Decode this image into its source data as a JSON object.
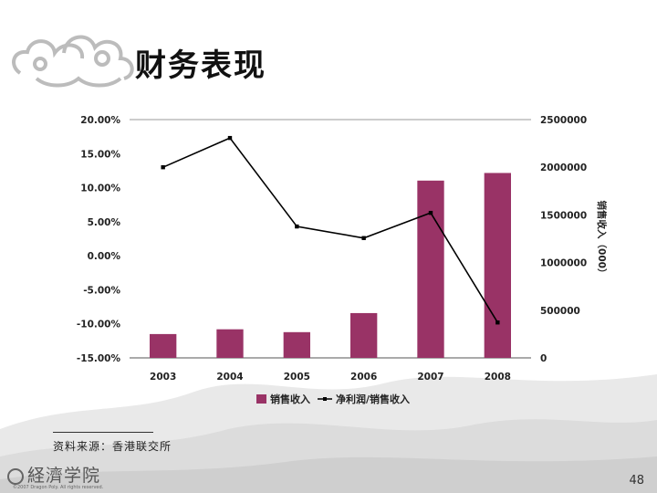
{
  "title": "财务表现",
  "source": "资料来源：香港联交所",
  "logo_text": "経濟学院",
  "copyright": "©2007 Dragon Poly. All rights reserved.",
  "page_number": "48",
  "colors": {
    "bar": "#993366",
    "line": "#000000"
  },
  "chart_data": {
    "type": "bar",
    "categories": [
      "2003",
      "2004",
      "2005",
      "2006",
      "2007",
      "2008"
    ],
    "series": [
      {
        "name": "销售收入",
        "type": "bar",
        "axis": "right",
        "values": [
          250000,
          300000,
          270000,
          470000,
          1860000,
          1940000
        ]
      },
      {
        "name": "净利润/销售收入",
        "type": "line",
        "axis": "left",
        "values": [
          13.0,
          17.3,
          4.3,
          2.6,
          6.3,
          -9.8
        ]
      }
    ],
    "y_left": {
      "ylim": [
        -15,
        20
      ],
      "ticks": [
        "20.00%",
        "15.00%",
        "10.00%",
        "5.00%",
        "0.00%",
        "-5.00%",
        "-10.00%",
        "-15.00%"
      ]
    },
    "y_right": {
      "ylim": [
        0,
        2500000
      ],
      "ticks": [
        "2500000",
        "2000000",
        "1500000",
        "1000000",
        "500000",
        "0"
      ],
      "label": "销售收入（000）"
    },
    "legend": {
      "position": "bottom",
      "entries": [
        "销售收入",
        "净利润/销售收入"
      ]
    },
    "grid": true
  }
}
